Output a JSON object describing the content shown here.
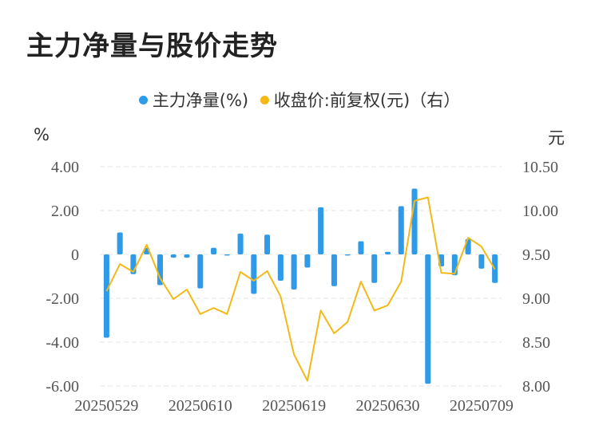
{
  "title": "主力净量与股价走势",
  "colors": {
    "bar": "#2f9be8",
    "line": "#f2b918",
    "grid": "#e6e6e6",
    "axis_text": "#555555"
  },
  "legend": {
    "series1": "主力净量(%)",
    "series2": "收盘价:前复权(元)（右）"
  },
  "units": {
    "left": "%",
    "right": "元"
  },
  "chart_data": {
    "type": "bar+line",
    "x_tick_labels": [
      "20250529",
      "20250610",
      "20250619",
      "20250630",
      "20250709"
    ],
    "x_tick_index": [
      0,
      7,
      14,
      21,
      28
    ],
    "yticks_left": [
      "4.00",
      "2.00",
      "0",
      "-2.00",
      "-4.00",
      "-6.00"
    ],
    "yticks_right": [
      "10.50",
      "10.00",
      "9.50",
      "9.00",
      "8.50",
      "8.00"
    ],
    "ylim_left": [
      -6,
      4
    ],
    "ylim_right": [
      8.0,
      10.5
    ],
    "grid": true,
    "series": [
      {
        "name": "主力净量(%)",
        "type": "bar",
        "axis": "left",
        "values": [
          -3.8,
          1.0,
          -0.9,
          0.3,
          -1.4,
          -0.15,
          -0.15,
          -1.55,
          0.3,
          -0.05,
          0.95,
          -1.8,
          0.9,
          -1.2,
          -1.6,
          -0.6,
          2.15,
          -1.45,
          -0.05,
          0.6,
          -1.3,
          0.12,
          2.2,
          3.0,
          -5.9,
          -0.55,
          -0.95,
          0.7,
          -0.65,
          -1.3
        ]
      },
      {
        "name": "收盘价:前复权(元)（右）",
        "type": "line",
        "axis": "right",
        "values": [
          9.08,
          9.39,
          9.3,
          9.61,
          9.23,
          8.99,
          9.1,
          8.82,
          8.89,
          8.82,
          9.3,
          9.2,
          9.31,
          9.02,
          8.36,
          8.06,
          8.86,
          8.6,
          8.73,
          9.19,
          8.86,
          8.92,
          9.19,
          10.11,
          10.15,
          9.29,
          9.28,
          9.69,
          9.59,
          9.33
        ]
      }
    ]
  }
}
